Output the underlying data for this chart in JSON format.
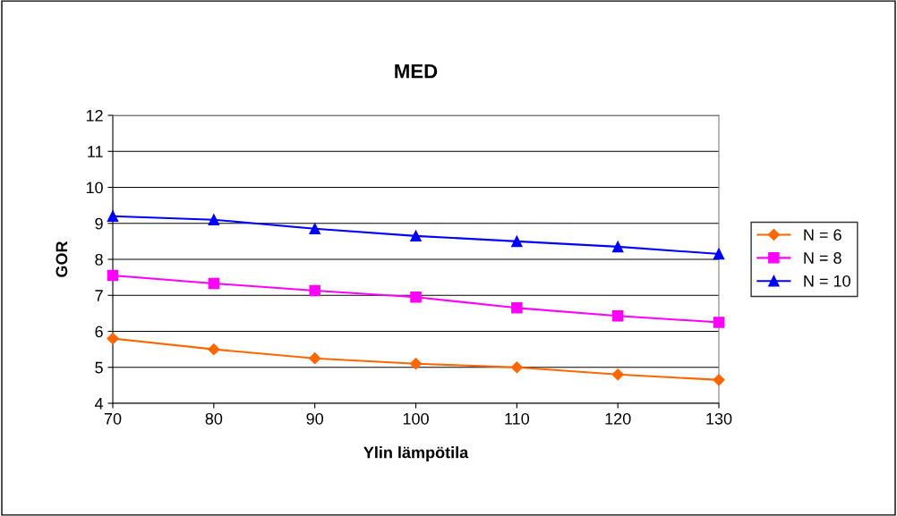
{
  "chart_data": {
    "type": "line",
    "title": "MED",
    "xlabel": "Ylin lämpötila",
    "ylabel": "GOR",
    "x": [
      70,
      80,
      90,
      100,
      110,
      120,
      130
    ],
    "series": [
      {
        "name": "N = 6",
        "color": "#ff6600",
        "marker": "diamond",
        "values": [
          5.8,
          5.5,
          5.25,
          5.1,
          5.0,
          4.8,
          4.65
        ]
      },
      {
        "name": "N = 8",
        "color": "#ff00ff",
        "marker": "square",
        "values": [
          7.55,
          7.33,
          7.13,
          6.95,
          6.65,
          6.43,
          6.25
        ]
      },
      {
        "name": "N = 10",
        "color": "#0000ff",
        "marker": "triangle",
        "values": [
          9.2,
          9.1,
          8.85,
          8.65,
          8.5,
          8.35,
          8.15
        ]
      }
    ],
    "xlim": [
      70,
      130
    ],
    "xticks": [
      70,
      80,
      90,
      100,
      110,
      120,
      130
    ],
    "ylim": [
      4,
      12
    ],
    "yticks": [
      4,
      5,
      6,
      7,
      8,
      9,
      10,
      11,
      12
    ],
    "grid": "y",
    "legend": "right",
    "line_style": "solid"
  }
}
